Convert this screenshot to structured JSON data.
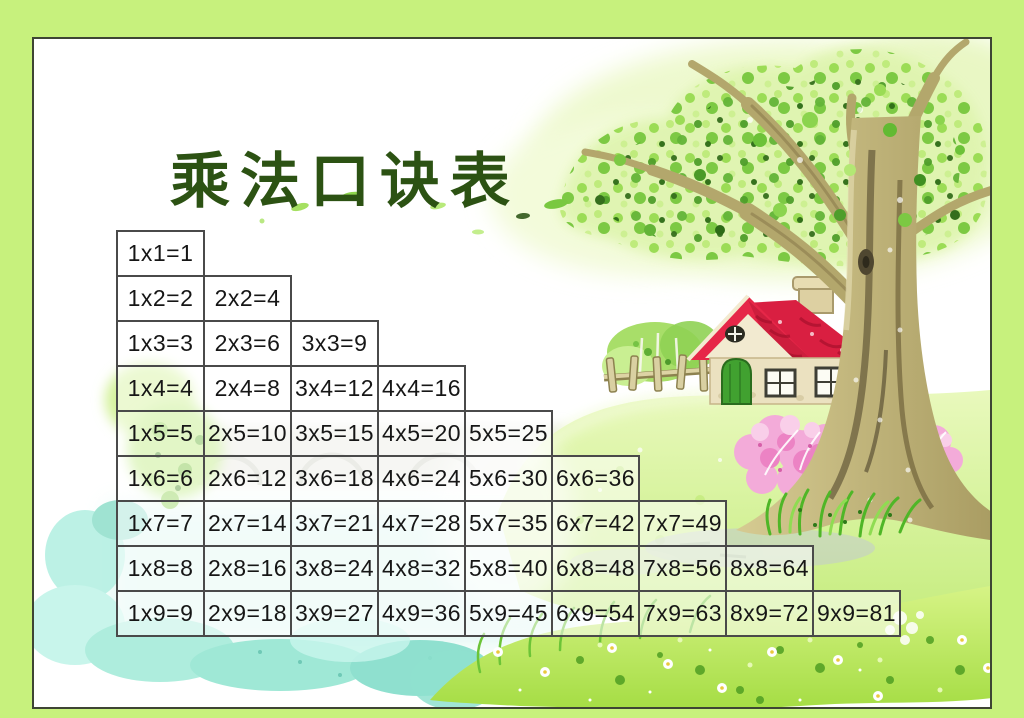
{
  "title": "乘法口诀表",
  "table": {
    "rows": [
      [
        "1x1=1"
      ],
      [
        "1x2=2",
        "2x2=4"
      ],
      [
        "1x3=3",
        "2x3=6",
        "3x3=9"
      ],
      [
        "1x4=4",
        "2x4=8",
        "3x4=12",
        "4x4=16"
      ],
      [
        "1x5=5",
        "2x5=10",
        "3x5=15",
        "4x5=20",
        "5x5=25"
      ],
      [
        "1x6=6",
        "2x6=12",
        "3x6=18",
        "4x6=24",
        "5x6=30",
        "6x6=36"
      ],
      [
        "1x7=7",
        "2x7=14",
        "3x7=21",
        "4x7=28",
        "5x7=35",
        "6x7=42",
        "7x7=49"
      ],
      [
        "1x8=8",
        "2x8=16",
        "3x8=24",
        "4x8=32",
        "5x8=40",
        "6x8=48",
        "7x8=56",
        "8x8=64"
      ],
      [
        "1x9=9",
        "2x9=18",
        "3x9=27",
        "4x9=36",
        "5x9=45",
        "6x9=54",
        "7x9=63",
        "8x9=72",
        "9x9=81"
      ]
    ]
  },
  "colors": {
    "frame_green": "#c7f17d",
    "title_green": "#2c5213",
    "cell_border_gray": "#4a4a4a",
    "roof_red": "#d91f41",
    "door_green": "#41a130",
    "pond_aqua": "#aeeede",
    "grass_green": "#a5dd44",
    "foliage_green": "#7cc943",
    "trunk_tan": "#a79a60",
    "blossom_pink": "#f3abd9"
  }
}
